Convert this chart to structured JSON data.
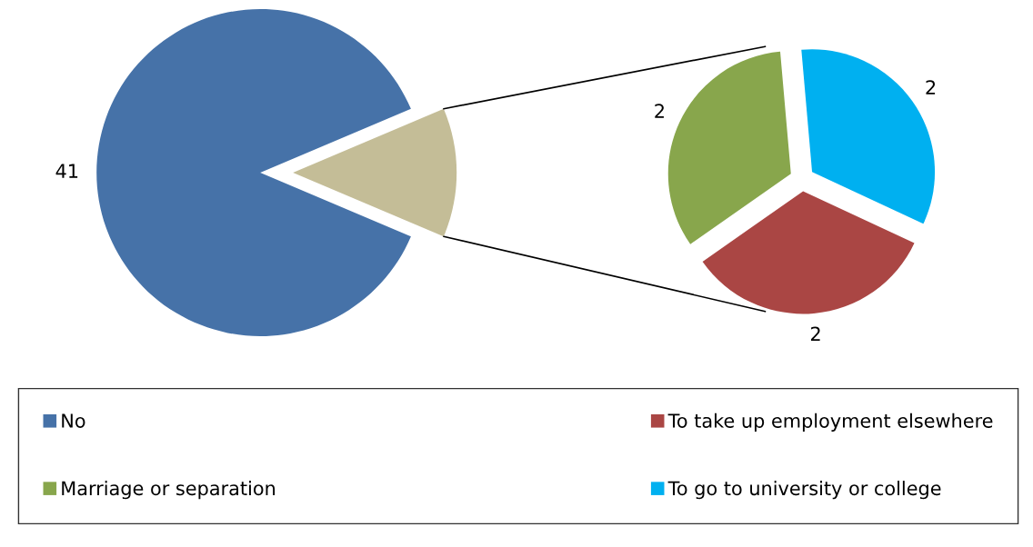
{
  "chart_data": [
    {
      "type": "pie",
      "categories": [
        "No",
        null
      ],
      "values": [
        41,
        6
      ],
      "colors": [
        "#4672a8",
        "#c4bd97"
      ],
      "value_labels": [
        "41",
        null
      ],
      "legend": "bottom"
    },
    {
      "type": "pie",
      "categories": [
        "To take up employment elsewhere",
        "Marriage or separation",
        "To go to university or college"
      ],
      "values": [
        2,
        2,
        2
      ],
      "colors": [
        "#aa4644",
        "#88a64c",
        "#00b0f0"
      ],
      "data_labels": true,
      "legend": "bottom"
    }
  ]
}
